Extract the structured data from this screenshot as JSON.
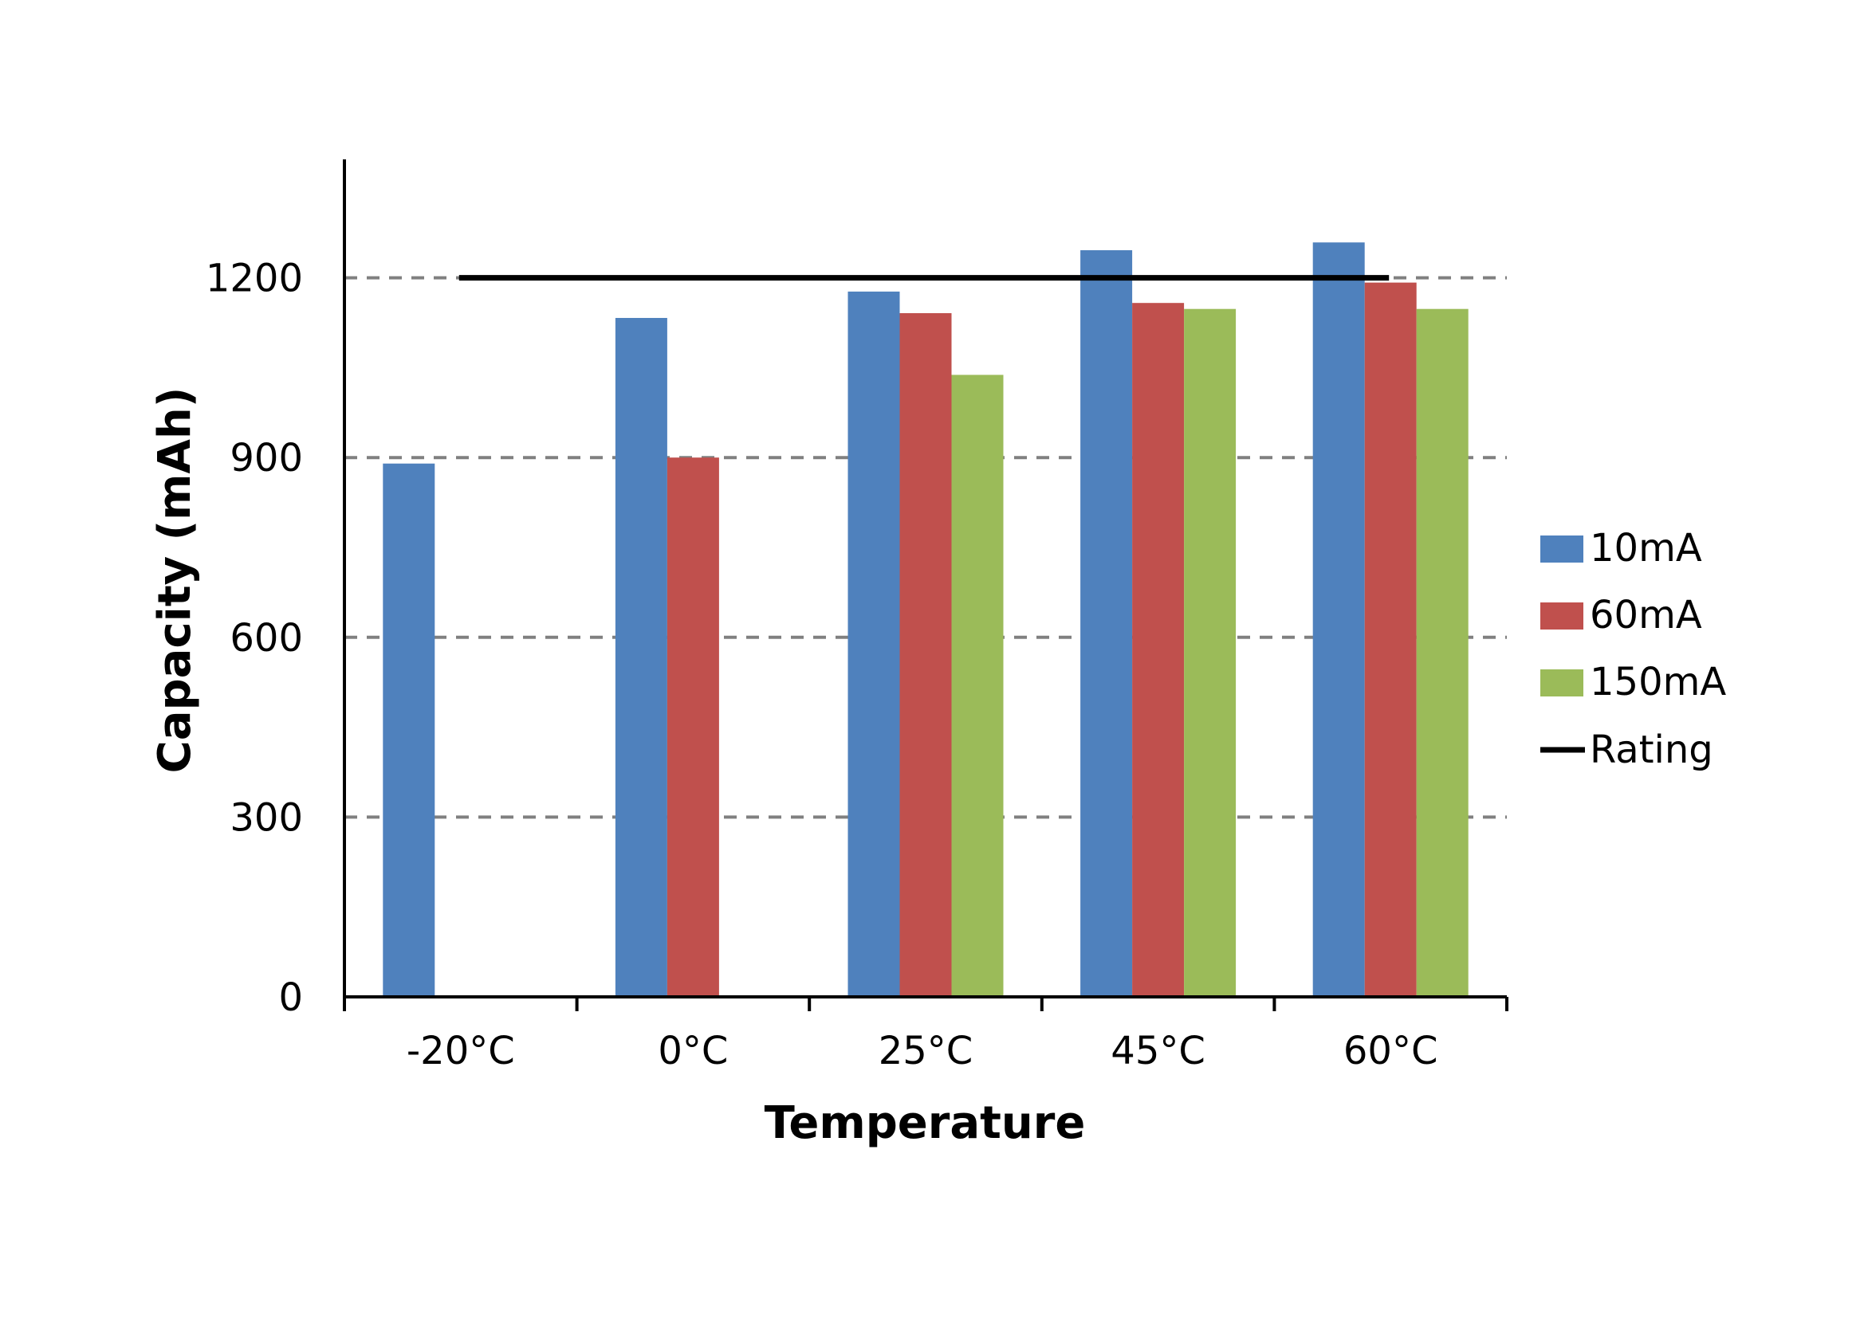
{
  "chart_data": {
    "type": "bar",
    "xlabel": "Temperature",
    "ylabel": "Capacity (mAh)",
    "categories": [
      "-20°C",
      "0°C",
      "25°C",
      "45°C",
      "60°C"
    ],
    "ylim": [
      0,
      1400
    ],
    "yticks": [
      0,
      300,
      600,
      900,
      1200
    ],
    "grid": true,
    "legend_position": "right",
    "series": [
      {
        "name": "10mA",
        "color": "#4F81BD",
        "values": [
          890,
          1133,
          1177,
          1246,
          1259
        ]
      },
      {
        "name": "60mA",
        "color": "#C0504D",
        "values": [
          null,
          900,
          1141,
          1158,
          1192
        ]
      },
      {
        "name": "150mA",
        "color": "#9BBB59",
        "values": [
          null,
          null,
          1038,
          1148,
          1148
        ]
      }
    ],
    "reference_line": {
      "name": "Rating",
      "value": 1200,
      "color": "#000000"
    }
  }
}
